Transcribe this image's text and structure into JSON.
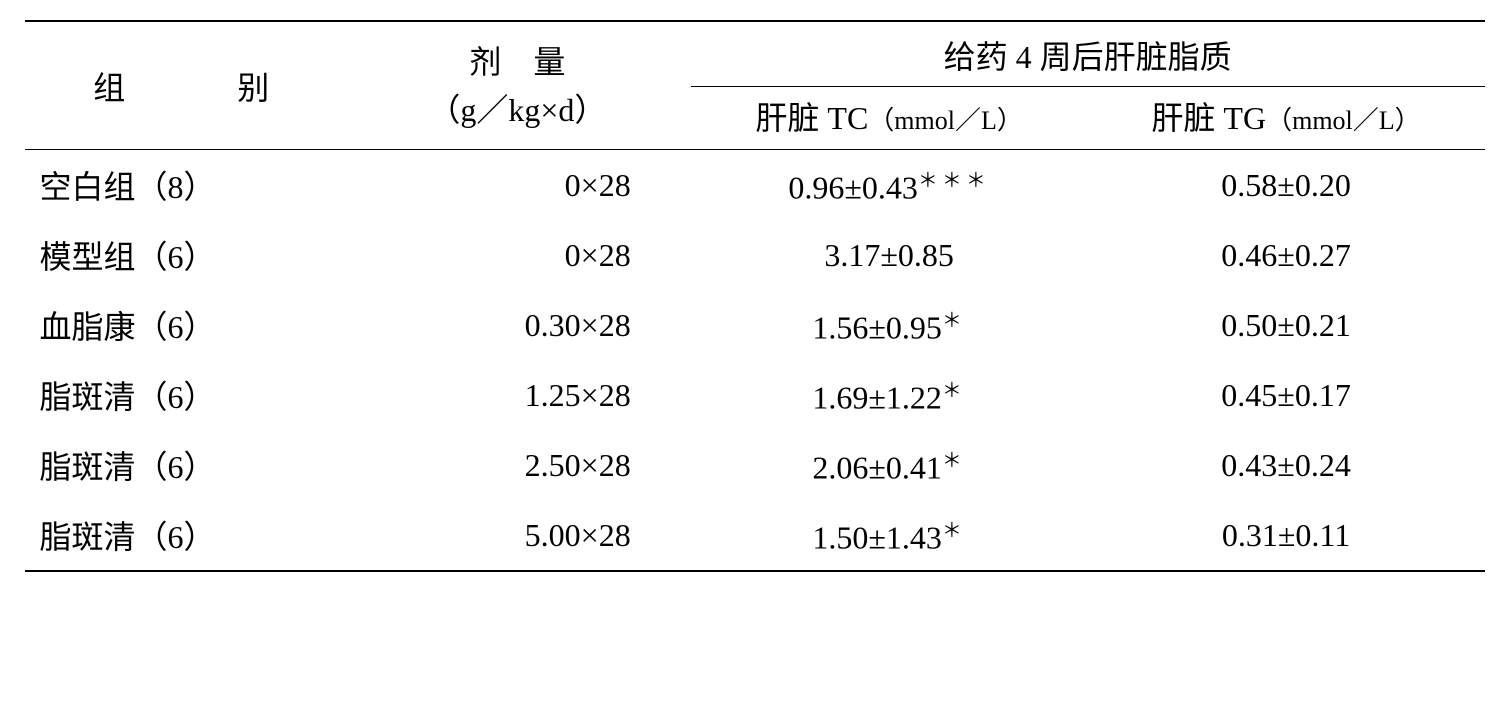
{
  "table": {
    "headers": {
      "group": "组　别",
      "dose_label": "剂　量",
      "dose_unit": "（g／kg×d）",
      "liver_lipid_header": "给药 4 周后肝脏脂质",
      "tc_label": "肝脏 TC",
      "tc_unit": "（mmol／L）",
      "tg_label": "肝脏 TG",
      "tg_unit": "（mmol／L）"
    },
    "rows": [
      {
        "group": "空白组（8）",
        "dose": "0×28",
        "tc": "0.96±0.43",
        "tc_sup": "＊＊＊",
        "tg": "0.58±0.20"
      },
      {
        "group": "模型组（6）",
        "dose": "0×28",
        "tc": "3.17±0.85",
        "tc_sup": "",
        "tg": "0.46±0.27"
      },
      {
        "group": "血脂康（6）",
        "dose": "0.30×28",
        "tc": "1.56±0.95",
        "tc_sup": "＊",
        "tg": "0.50±0.21"
      },
      {
        "group": "脂斑清（6）",
        "dose": "1.25×28",
        "tc": "1.69±1.22",
        "tc_sup": "＊",
        "tg": "0.45±0.17"
      },
      {
        "group": "脂斑清（6）",
        "dose": "2.50×28",
        "tc": "2.06±0.41",
        "tc_sup": "＊",
        "tg": "0.43±0.24"
      },
      {
        "group": "脂斑清（6）",
        "dose": "5.00×28",
        "tc": "1.50±1.43",
        "tc_sup": "＊",
        "tg": "0.31±0.11"
      }
    ],
    "colors": {
      "text": "#000000",
      "background": "#ffffff",
      "border": "#000000"
    },
    "font": {
      "family": "SimSun, Times New Roman, serif",
      "body_size_pt": 24,
      "unit_size_pt": 20
    }
  }
}
